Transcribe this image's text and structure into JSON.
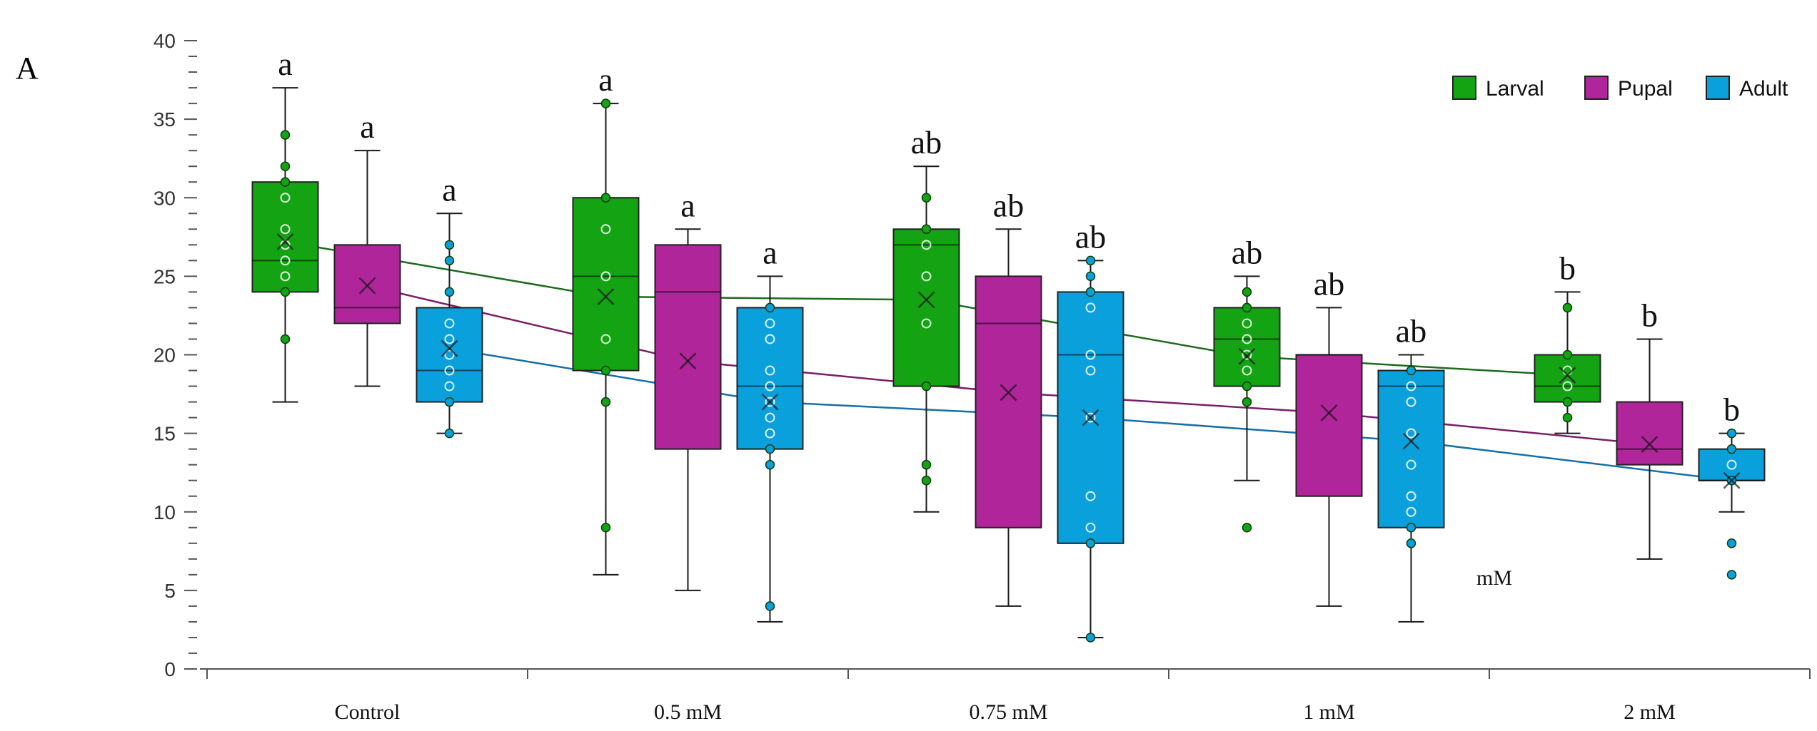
{
  "panel_label": "A",
  "colors": {
    "Larval": "#13a313",
    "Pupal": "#b0259a",
    "Adult": "#0aa0dc",
    "axis": "#555555",
    "whisker": "#1a1a1a"
  },
  "chart_data": {
    "type": "boxplot",
    "title": "",
    "xlabel": "",
    "ylabel": "",
    "ylim": [
      0,
      40
    ],
    "yticks": [
      0,
      5,
      10,
      15,
      20,
      25,
      30,
      35,
      40
    ],
    "ytick_labels": [
      "0",
      "5",
      "10",
      "15",
      "20",
      "25",
      "30",
      "35",
      "40"
    ],
    "categories": [
      "Control",
      "0.5 mM",
      "0.75 mM",
      "1 mM",
      "2 mM"
    ],
    "legend": [
      "Larval",
      "Pupal",
      "Adult"
    ],
    "legend_position": "top-right",
    "annotation": "mM",
    "series": [
      {
        "name": "Larval",
        "boxes": [
          {
            "min": 17,
            "q1": 24,
            "median": 26,
            "q3": 31,
            "max": 37,
            "mean": 27.2,
            "letter": "a",
            "points": [
              34,
              32,
              31,
              30,
              28,
              27,
              26,
              25,
              24,
              21
            ]
          },
          {
            "min": 6,
            "q1": 19,
            "median": 25,
            "q3": 30,
            "max": 36,
            "mean": 23.7,
            "letter": "a",
            "points": [
              36,
              30,
              28,
              25,
              21,
              19,
              17,
              9
            ]
          },
          {
            "min": 10,
            "q1": 18,
            "median": 27,
            "q3": 28,
            "max": 32,
            "mean": 23.5,
            "letter": "ab",
            "points": [
              30,
              28,
              27,
              25,
              22,
              18,
              13,
              12
            ]
          },
          {
            "min": 12,
            "q1": 18,
            "median": 21,
            "q3": 23,
            "max": 25,
            "mean": 19.9,
            "letter": "ab",
            "points": [
              24,
              23,
              22,
              21,
              20,
              19,
              18,
              17,
              9
            ]
          },
          {
            "min": 15,
            "q1": 17,
            "median": 18,
            "q3": 20,
            "max": 24,
            "mean": 18.7,
            "letter": "b",
            "points": [
              23,
              20,
              19,
              18,
              17,
              16
            ]
          }
        ]
      },
      {
        "name": "Pupal",
        "boxes": [
          {
            "min": 18,
            "q1": 22,
            "median": 23,
            "q3": 27,
            "max": 33,
            "mean": 24.4,
            "letter": "a",
            "points": []
          },
          {
            "min": 5,
            "q1": 14,
            "median": 24,
            "q3": 27,
            "max": 28,
            "mean": 19.6,
            "letter": "a",
            "points": []
          },
          {
            "min": 4,
            "q1": 9,
            "median": 22,
            "q3": 25,
            "max": 28,
            "mean": 17.6,
            "letter": "ab",
            "points": []
          },
          {
            "min": 4,
            "q1": 11,
            "median": 20,
            "q3": 20,
            "max": 23,
            "mean": 16.3,
            "letter": "ab",
            "points": []
          },
          {
            "min": 7,
            "q1": 13,
            "median": 14,
            "q3": 17,
            "max": 21,
            "mean": 14.3,
            "letter": "b",
            "points": []
          }
        ]
      },
      {
        "name": "Adult",
        "boxes": [
          {
            "min": 15,
            "q1": 17,
            "median": 19,
            "q3": 23,
            "max": 29,
            "mean": 20.4,
            "letter": "a",
            "points": [
              27,
              26,
              24,
              22,
              21,
              20,
              19,
              18,
              17,
              15
            ]
          },
          {
            "min": 3,
            "q1": 14,
            "median": 18,
            "q3": 23,
            "max": 25,
            "mean": 17.0,
            "letter": "a",
            "points": [
              23,
              22,
              21,
              19,
              18,
              17,
              16,
              15,
              14,
              13,
              4
            ]
          },
          {
            "min": 2,
            "q1": 8,
            "median": 20,
            "q3": 24,
            "max": 26,
            "mean": 16.0,
            "letter": "ab",
            "points": [
              26,
              25,
              24,
              23,
              20,
              19,
              16,
              11,
              9,
              8,
              2
            ]
          },
          {
            "min": 3,
            "q1": 9,
            "median": 18,
            "q3": 19,
            "max": 20,
            "mean": 14.5,
            "letter": "ab",
            "points": [
              19,
              18,
              17,
              15,
              13,
              11,
              10,
              9,
              8
            ]
          },
          {
            "min": 10,
            "q1": 12,
            "median": 12,
            "q3": 14,
            "max": 15,
            "mean": 12.0,
            "letter": "b",
            "points": [
              15,
              14,
              13,
              12,
              8,
              6
            ]
          }
        ]
      }
    ]
  }
}
